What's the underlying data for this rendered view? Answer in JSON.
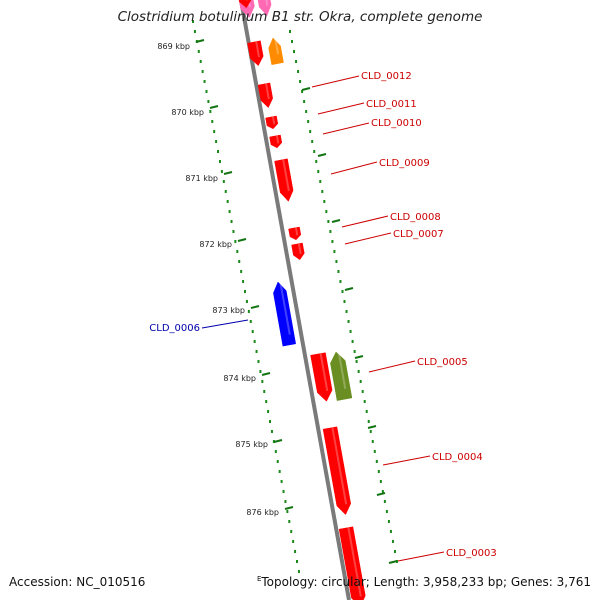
{
  "title": "Clostridium botulinum B1 str. Okra, complete genome",
  "accession_text": "Accession: NC_010516",
  "topology_text": "Topology: circular; Length: 3,958,233 bp; Genes: 3,761",
  "footer_marker": "E",
  "colors": {
    "backbone": "#7a7a7a",
    "tick_green": "#127512",
    "dot_green": "#1a8a1a",
    "gene_red": "#ff0000",
    "gene_blue": "#0000ff",
    "gene_orange": "#ff8c00",
    "gene_olive": "#6b8e23",
    "gene_pink": "#ff69b4",
    "label_red": "#cc0000",
    "label_blue": "#0000aa"
  },
  "ruler_labels": [
    "869 kbp",
    "870 kbp",
    "871 kbp",
    "872 kbp",
    "873 kbp",
    "874 kbp",
    "875 kbp",
    "876 kbp"
  ],
  "gene_labels": [
    {
      "text": "CLD_0012",
      "strand": "plus"
    },
    {
      "text": "CLD_0011",
      "strand": "plus"
    },
    {
      "text": "CLD_0010",
      "strand": "plus"
    },
    {
      "text": "CLD_0009",
      "strand": "plus"
    },
    {
      "text": "CLD_0008",
      "strand": "plus"
    },
    {
      "text": "CLD_0007",
      "strand": "plus"
    },
    {
      "text": "CLD_0006",
      "strand": "minus"
    },
    {
      "text": "CLD_0005",
      "strand": "plus"
    },
    {
      "text": "CLD_0004",
      "strand": "plus"
    },
    {
      "text": "CLD_0003",
      "strand": "plus"
    }
  ]
}
